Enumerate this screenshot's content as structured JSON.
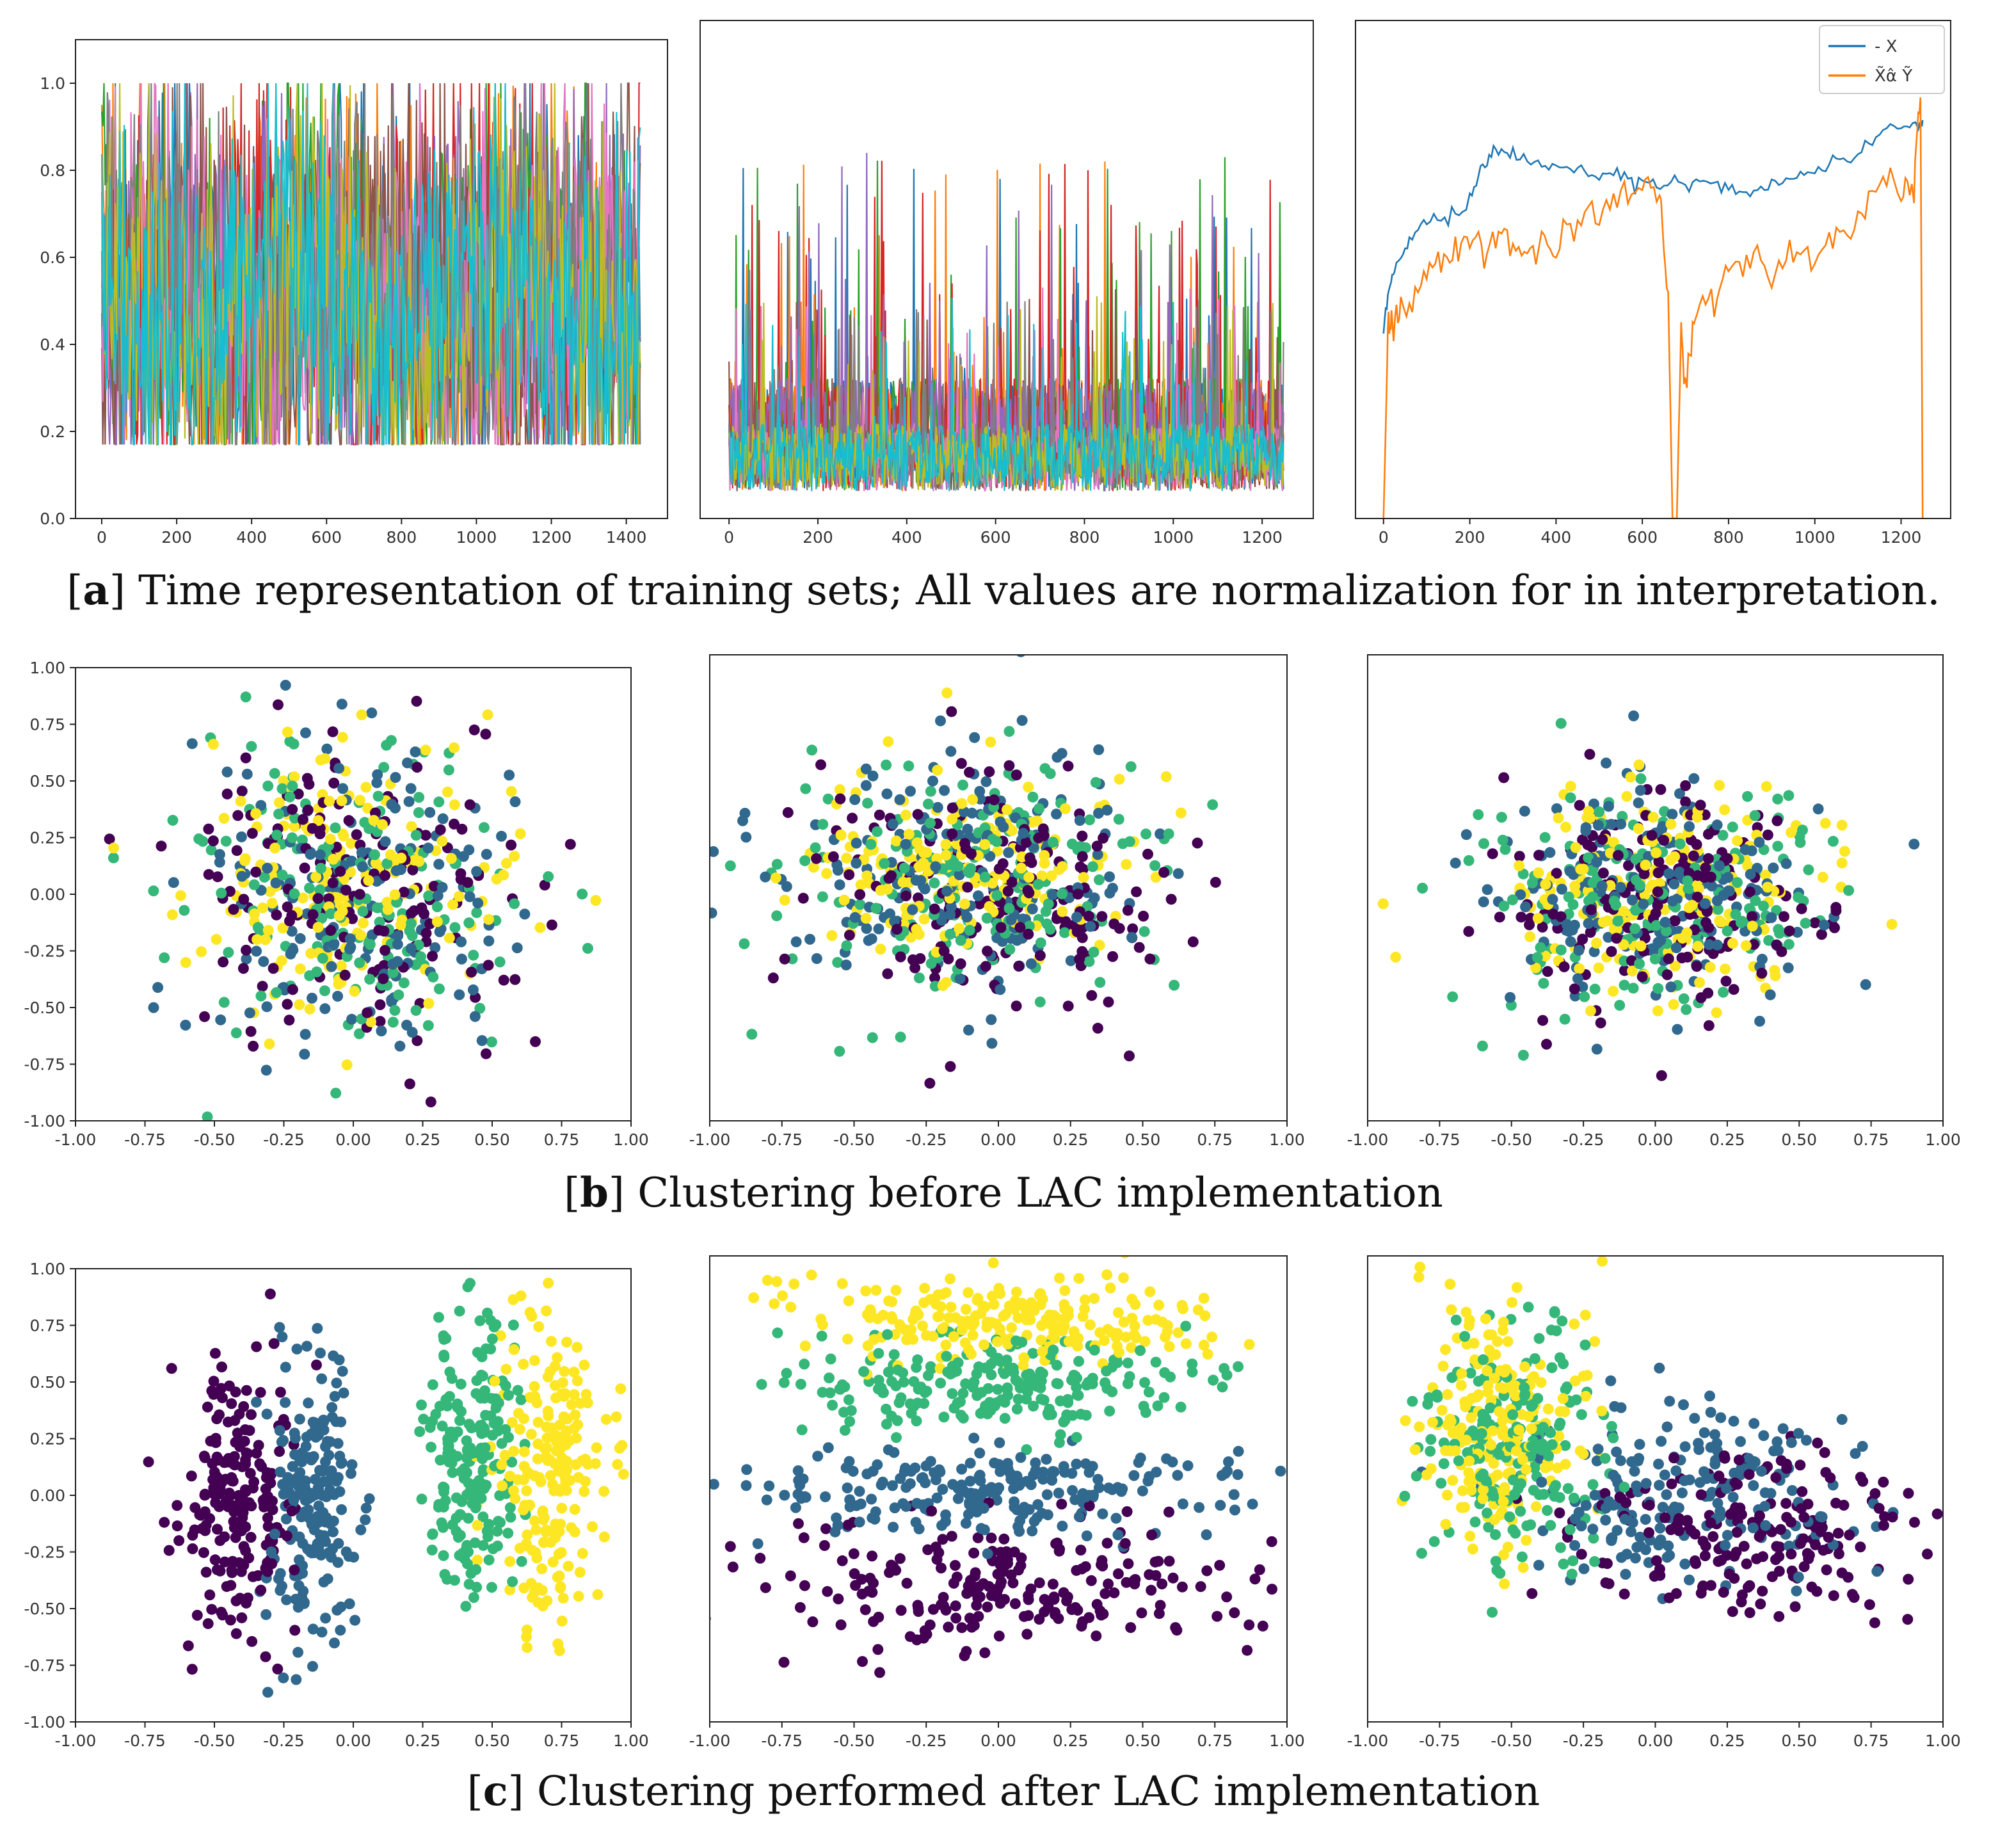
{
  "colors": {
    "tab10": [
      "#1f77b4",
      "#ff7f0e",
      "#2ca02c",
      "#d62728",
      "#9467bd",
      "#8c564b",
      "#e377c2",
      "#7f7f7f",
      "#bcbd22",
      "#17becf"
    ],
    "viridis4": [
      "#440154",
      "#31688e",
      "#35b779",
      "#fde725"
    ],
    "series_blue": "#1f77b4",
    "series_orange": "#ff7f0e"
  },
  "captions": {
    "a": {
      "prefix": "[",
      "letter": "a",
      "rest": "] Time representation of training sets; All values are normalization for in interpretation."
    },
    "b": {
      "prefix": "[",
      "letter": "b",
      "rest": "] Clustering before LAC implementation"
    },
    "c": {
      "prefix": "[",
      "letter": "c",
      "rest": "] Clustering performed after LAC implementation"
    }
  },
  "chart_data": [
    {
      "id": "a1",
      "type": "line",
      "title": "",
      "description_series": "many overlapping normalized feature series (tab10 palette)",
      "series_count": 10,
      "n_points": 1440,
      "value_range": [
        0.17,
        1.0
      ],
      "xlim": [
        -70,
        1510
      ],
      "ylim": [
        0.0,
        1.1
      ],
      "xticks": [
        0,
        200,
        400,
        600,
        800,
        1000,
        1200,
        1400
      ],
      "yticks": [
        0.0,
        0.2,
        0.4,
        0.6,
        0.8,
        1.0
      ],
      "xticklabels": [
        "0",
        "200",
        "400",
        "600",
        "800",
        "1000",
        "1200",
        "1400"
      ],
      "yticklabels": [
        "0.0",
        "0.2",
        "0.4",
        "0.6",
        "0.8",
        "1.0"
      ]
    },
    {
      "id": "a2",
      "type": "line",
      "title": "",
      "series_count": 10,
      "n_points": 1250,
      "value_range": [
        0.06,
        1.0
      ],
      "xlim": [
        -65,
        1315
      ],
      "ylim": [
        0.0,
        1.1
      ],
      "xticks": [
        0,
        200,
        400,
        600,
        800,
        1000,
        1200
      ],
      "xticklabels": [
        "0",
        "200",
        "400",
        "600",
        "800",
        "1000",
        "1200"
      ],
      "yticklabels": []
    },
    {
      "id": "a3",
      "type": "line",
      "title": "",
      "xlim": [
        -65,
        1315
      ],
      "ylim": [
        0.0,
        1.1
      ],
      "xticks": [
        0,
        200,
        400,
        600,
        800,
        1000,
        1200
      ],
      "xticklabels": [
        "0",
        "200",
        "400",
        "600",
        "800",
        "1000",
        "1200"
      ],
      "yticklabels": [],
      "legend_position": "top-right",
      "series": [
        {
          "name": "- X",
          "color_key": "series_blue",
          "x": [
            0,
            15,
            30,
            60,
            100,
            150,
            200,
            230,
            260,
            300,
            350,
            400,
            450,
            500,
            550,
            600,
            650,
            700,
            750,
            800,
            850,
            900,
            950,
            1000,
            1050,
            1100,
            1150,
            1200,
            1240,
            1250
          ],
          "y": [
            0.42,
            0.52,
            0.56,
            0.62,
            0.65,
            0.66,
            0.7,
            0.78,
            0.81,
            0.8,
            0.79,
            0.78,
            0.77,
            0.76,
            0.77,
            0.74,
            0.74,
            0.74,
            0.74,
            0.73,
            0.72,
            0.74,
            0.75,
            0.77,
            0.79,
            0.8,
            0.85,
            0.87,
            0.86,
            0.88
          ]
        },
        {
          "name": "X̃α̂ Ỹ",
          "color_key": "series_orange",
          "x": [
            0,
            10,
            20,
            40,
            80,
            120,
            160,
            200,
            240,
            280,
            320,
            360,
            400,
            450,
            500,
            550,
            600,
            640,
            660,
            670,
            680,
            690,
            700,
            720,
            760,
            800,
            850,
            900,
            950,
            1000,
            1050,
            1100,
            1150,
            1200,
            1230,
            1245,
            1250
          ],
          "y": [
            0.0,
            0.4,
            0.42,
            0.45,
            0.52,
            0.56,
            0.58,
            0.62,
            0.6,
            0.64,
            0.58,
            0.61,
            0.6,
            0.66,
            0.67,
            0.7,
            0.75,
            0.72,
            0.5,
            0.0,
            0.0,
            0.42,
            0.27,
            0.45,
            0.48,
            0.55,
            0.57,
            0.55,
            0.6,
            0.58,
            0.63,
            0.66,
            0.75,
            0.72,
            0.73,
            0.93,
            0.0
          ]
        }
      ]
    },
    {
      "id": "b1",
      "type": "scatter",
      "xlim": [
        -1.0,
        1.0
      ],
      "ylim": [
        -1.0,
        1.0
      ],
      "xticklabels": [
        "-1.00",
        "-0.75",
        "-0.50",
        "-0.25",
        "0.00",
        "0.25",
        "0.50",
        "0.75",
        "1.00"
      ],
      "yticklabels": [
        "-1.00",
        "-0.75",
        "-0.50",
        "-0.25",
        "0.00",
        "0.25",
        "0.50",
        "0.75",
        "1.00"
      ],
      "n_points": 700,
      "clusters": [
        {
          "label": 0,
          "center": [
            0.0,
            0.0
          ],
          "spread": [
            0.3,
            0.35
          ]
        },
        {
          "label": 1,
          "center": [
            0.0,
            0.0
          ],
          "spread": [
            0.3,
            0.35
          ]
        },
        {
          "label": 2,
          "center": [
            0.0,
            0.0
          ],
          "spread": [
            0.3,
            0.35
          ]
        },
        {
          "label": 3,
          "center": [
            0.0,
            0.05
          ],
          "spread": [
            0.28,
            0.32
          ]
        }
      ]
    },
    {
      "id": "b2",
      "type": "scatter",
      "xlim": [
        -1.0,
        1.0
      ],
      "ylim": [
        -1.0,
        1.0
      ],
      "xticklabels": [
        "-1.00",
        "-0.75",
        "-0.50",
        "-0.25",
        "0.00",
        "0.25",
        "0.50",
        "0.75",
        "1.00"
      ],
      "yticklabels": [],
      "n_points": 750,
      "clusters": [
        {
          "label": 0,
          "center": [
            -0.05,
            0.0
          ],
          "spread": [
            0.32,
            0.25
          ]
        },
        {
          "label": 1,
          "center": [
            -0.1,
            0.05
          ],
          "spread": [
            0.3,
            0.25
          ]
        },
        {
          "label": 2,
          "center": [
            -0.1,
            0.05
          ],
          "spread": [
            0.3,
            0.25
          ]
        },
        {
          "label": 3,
          "center": [
            -0.1,
            0.05
          ],
          "spread": [
            0.28,
            0.22
          ]
        }
      ]
    },
    {
      "id": "b3",
      "type": "scatter",
      "xlim": [
        -1.0,
        1.0
      ],
      "ylim": [
        -1.0,
        1.0
      ],
      "xticklabels": [
        "-1.00",
        "-0.75",
        "-0.50",
        "-0.25",
        "0.00",
        "0.25",
        "0.50",
        "0.75",
        "1.00"
      ],
      "yticklabels": [],
      "n_points": 750,
      "clusters": [
        {
          "label": 0,
          "center": [
            0.0,
            -0.05
          ],
          "spread": [
            0.3,
            0.25
          ]
        },
        {
          "label": 1,
          "center": [
            0.0,
            0.0
          ],
          "spread": [
            0.3,
            0.25
          ]
        },
        {
          "label": 2,
          "center": [
            0.0,
            0.0
          ],
          "spread": [
            0.3,
            0.25
          ]
        },
        {
          "label": 3,
          "center": [
            0.0,
            0.0
          ],
          "spread": [
            0.28,
            0.22
          ]
        }
      ]
    },
    {
      "id": "c1",
      "type": "scatter",
      "xlim": [
        -1.0,
        1.0
      ],
      "ylim": [
        -1.0,
        1.0
      ],
      "xticklabels": [
        "-1.00",
        "-0.75",
        "-0.50",
        "-0.25",
        "0.00",
        "0.25",
        "0.50",
        "0.75",
        "1.00"
      ],
      "yticklabels": [
        "-1.00",
        "-0.75",
        "-0.50",
        "-0.25",
        "0.00",
        "0.25",
        "0.50",
        "0.75",
        "1.00"
      ],
      "n_points": 800,
      "clusters": [
        {
          "label": 0,
          "center": [
            -0.42,
            -0.05
          ],
          "spread": [
            0.1,
            0.3
          ]
        },
        {
          "label": 1,
          "center": [
            -0.15,
            0.0
          ],
          "spread": [
            0.08,
            0.35
          ]
        },
        {
          "label": 2,
          "center": [
            0.42,
            0.15
          ],
          "spread": [
            0.08,
            0.3
          ]
        },
        {
          "label": 3,
          "center": [
            0.7,
            0.15
          ],
          "spread": [
            0.1,
            0.35
          ]
        }
      ]
    },
    {
      "id": "c2",
      "type": "scatter",
      "xlim": [
        -1.0,
        1.0
      ],
      "ylim": [
        -1.0,
        1.0
      ],
      "xticklabels": [
        "-1.00",
        "-0.75",
        "-0.50",
        "-0.25",
        "0.00",
        "0.25",
        "0.50",
        "0.75",
        "1.00"
      ],
      "yticklabels": [],
      "n_points": 900,
      "clusters": [
        {
          "label": 0,
          "center": [
            0.0,
            -0.4
          ],
          "spread": [
            0.45,
            0.15
          ]
        },
        {
          "label": 1,
          "center": [
            0.0,
            -0.02
          ],
          "spread": [
            0.45,
            0.1
          ]
        },
        {
          "label": 2,
          "center": [
            0.0,
            0.45
          ],
          "spread": [
            0.38,
            0.1
          ]
        },
        {
          "label": 3,
          "center": [
            0.0,
            0.72
          ],
          "spread": [
            0.38,
            0.1
          ]
        }
      ]
    },
    {
      "id": "c3",
      "type": "scatter",
      "xlim": [
        -1.0,
        1.0
      ],
      "ylim": [
        -1.0,
        1.0
      ],
      "xticklabels": [
        "-1.00",
        "-0.75",
        "-0.50",
        "-0.25",
        "0.00",
        "0.25",
        "0.50",
        "0.75",
        "1.00"
      ],
      "yticklabels": [],
      "n_points": 800,
      "clusters": [
        {
          "label": 0,
          "center": [
            0.4,
            -0.2
          ],
          "spread": [
            0.3,
            0.18
          ]
        },
        {
          "label": 1,
          "center": [
            0.1,
            0.0
          ],
          "spread": [
            0.28,
            0.2
          ]
        },
        {
          "label": 2,
          "center": [
            -0.5,
            0.2
          ],
          "spread": [
            0.15,
            0.25
          ]
        },
        {
          "label": 3,
          "center": [
            -0.55,
            0.25
          ],
          "spread": [
            0.15,
            0.25
          ]
        }
      ]
    }
  ]
}
